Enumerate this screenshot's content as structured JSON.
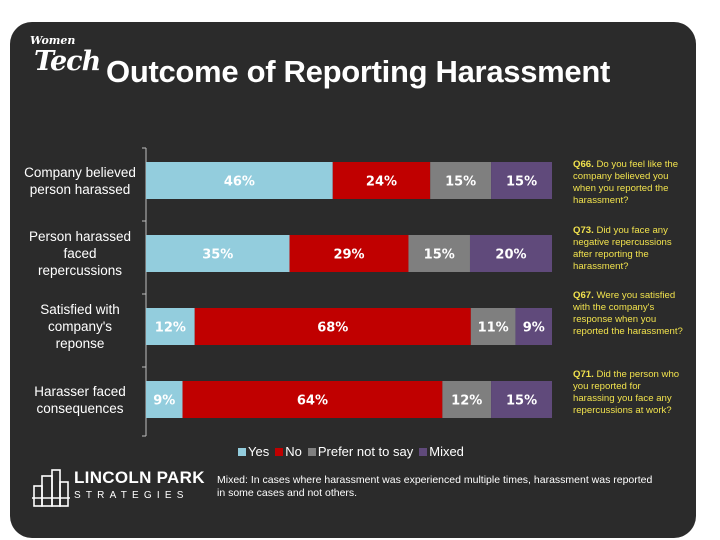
{
  "logo": {
    "line1": "Women",
    "line2": "Tech"
  },
  "title": "Outcome of Reporting Harassment",
  "chart_data": {
    "type": "bar",
    "orientation": "horizontal",
    "stacked": true,
    "categories": [
      "Company believed person harassed",
      "Person harassed faced repercussions",
      "Satisfied with company's reponse",
      "Harasser faced consequences"
    ],
    "series": [
      {
        "name": "Yes",
        "color": "#93cddd",
        "values": [
          46,
          35,
          12,
          9
        ]
      },
      {
        "name": "No",
        "color": "#c00000",
        "values": [
          24,
          29,
          68,
          64
        ]
      },
      {
        "name": "Prefer not to say",
        "color": "#7f7f7f",
        "values": [
          15,
          15,
          11,
          12
        ]
      },
      {
        "name": "Mixed",
        "color": "#604a7b",
        "values": [
          15,
          20,
          9,
          15
        ]
      }
    ],
    "value_suffix": "%",
    "legend_position": "bottom"
  },
  "questions": [
    {
      "num": "Q66.",
      "text": "Do you feel like the company believed you when you reported the harassment?"
    },
    {
      "num": "Q73.",
      "text": "Did you face any negative repercussions after reporting the harassment?"
    },
    {
      "num": "Q67.",
      "text": "Were you satisfied with the company's response when you reported the harassment?"
    },
    {
      "num": "Q71.",
      "text": "Did the person who you reported for harassing you face any repercussions at work?"
    }
  ],
  "note": "Mixed: In cases where harassment was experienced multiple times, harassment was reported in some cases and not others.",
  "brand": {
    "line1": "LINCOLN PARK",
    "line2": "STRATEGIES"
  }
}
